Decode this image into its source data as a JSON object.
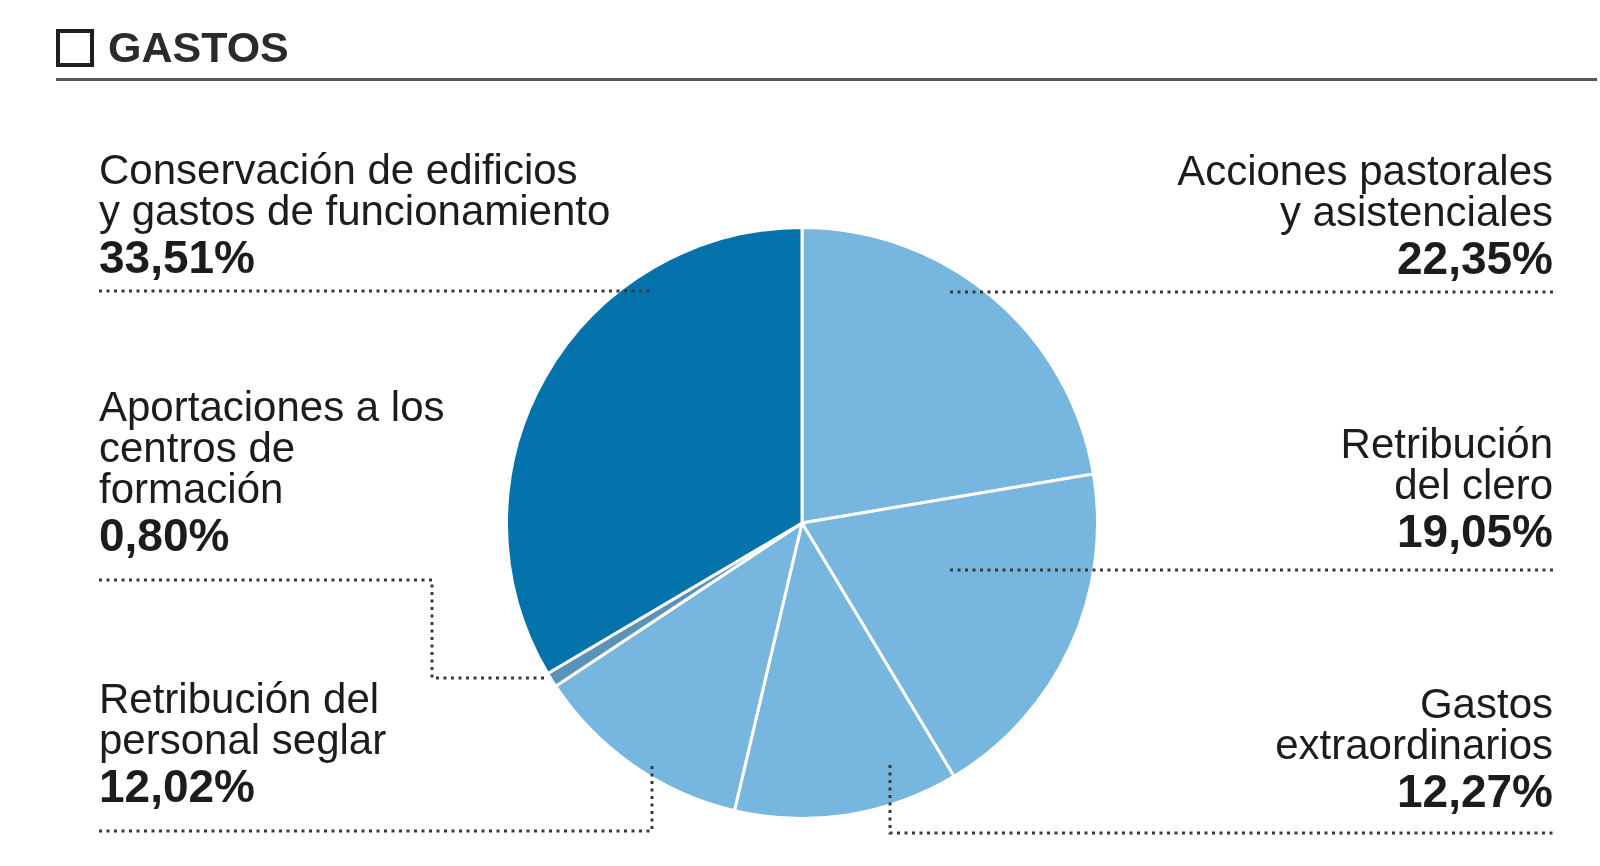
{
  "chart_data": {
    "type": "pie",
    "title": "GASTOS",
    "categories": [
      "Acciones pastorales\ny asistenciales",
      "Retribución\ndel clero",
      "Gastos\nextraordinarios",
      "Retribución del\npersonal seglar",
      "Aportaciones a los\ncentros de\nformación",
      "Conservación de edificios\ny gastos de funcionamiento"
    ],
    "values": [
      22.35,
      19.05,
      12.27,
      12.02,
      0.8,
      33.51
    ],
    "value_labels": [
      "22,35%",
      "19,05%",
      "12,27%",
      "12,02%",
      "0,80%",
      "33,51%"
    ],
    "colors": [
      "#77b6df",
      "#77b6df",
      "#77b6df",
      "#77b6df",
      "#5b92b8",
      "#0573ab"
    ]
  }
}
